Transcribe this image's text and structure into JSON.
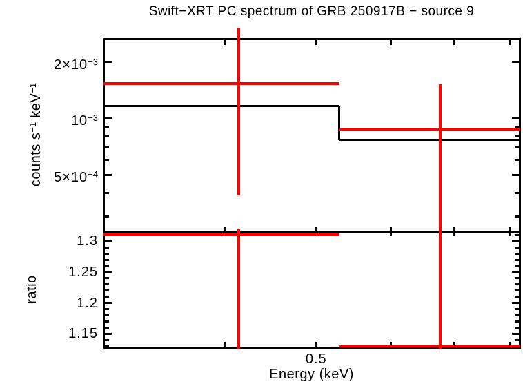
{
  "chart_data": {
    "type": "step",
    "title": "Swift−XRT PC spectrum of GRB 250917B − source 9",
    "xlabel": "Energy (keV)",
    "xscale": "log",
    "xlim": [
      0.298,
      0.82
    ],
    "xticks": [
      {
        "value": 0.4,
        "label": ""
      },
      {
        "value": 0.5,
        "label": "0.5"
      },
      {
        "value": 0.6,
        "label": ""
      },
      {
        "value": 0.7,
        "label": ""
      },
      {
        "value": 0.8,
        "label": ""
      }
    ],
    "colors": {
      "data": "#ff0000",
      "model": "#000000",
      "axes": "#000000",
      "background": "#ffffff"
    },
    "panels": [
      {
        "name": "spectrum",
        "ylabel_parts": [
          {
            "t": "counts s"
          },
          {
            "t": "−1",
            "sup": true
          },
          {
            "t": " keV"
          },
          {
            "t": "−1",
            "sup": true
          }
        ],
        "yscale": "log",
        "ylim": [
          0.00025,
          0.00266
        ],
        "yticks_major": [
          {
            "value": 0.002,
            "base": "2×10",
            "exp": "−3"
          },
          {
            "value": 0.001,
            "base": "10",
            "exp": "−3"
          },
          {
            "value": 0.0005,
            "base": "5×10",
            "exp": "−4"
          }
        ],
        "yticks_minor": [
          0.0009,
          0.0008,
          0.0007,
          0.0006,
          0.0004,
          0.0003
        ],
        "model_steps": [
          {
            "xlo": 0.298,
            "xhi": 0.529,
            "value": 0.00116
          },
          {
            "xlo": 0.529,
            "xhi": 0.82,
            "value": 0.00077
          }
        ],
        "data_points": [
          {
            "xlo": 0.298,
            "xhi": 0.529,
            "x": 0.414,
            "value": 0.00153,
            "err_top": 0.00305,
            "err_bottom": 0.00039
          },
          {
            "xlo": 0.529,
            "xhi": 0.82,
            "x": 0.676,
            "value": 0.00088,
            "err_top": 0.00152,
            "err_bottom": 0.00024
          }
        ]
      },
      {
        "name": "ratio",
        "ylabel": "ratio",
        "yscale": "linear",
        "ylim": [
          1.128,
          1.316
        ],
        "yticks_major": [
          {
            "value": 1.3,
            "label": "1.3"
          },
          {
            "value": 1.25,
            "label": "1.25"
          },
          {
            "value": 1.2,
            "label": "1.2"
          },
          {
            "value": 1.15,
            "label": "1.15"
          }
        ],
        "yticks_minor": [
          1.31,
          1.29,
          1.28,
          1.27,
          1.26,
          1.24,
          1.23,
          1.22,
          1.21,
          1.19,
          1.18,
          1.17,
          1.16,
          1.14,
          1.13
        ],
        "data_points": [
          {
            "xlo": 0.298,
            "xhi": 0.529,
            "x": 0.414,
            "value": 1.31,
            "err_top": 1.32,
            "err_bottom": 1.125
          },
          {
            "xlo": 0.529,
            "xhi": 0.82,
            "x": 0.676,
            "value": 1.13,
            "err_top": 1.318,
            "err_bottom": 1.125
          }
        ]
      }
    ]
  }
}
